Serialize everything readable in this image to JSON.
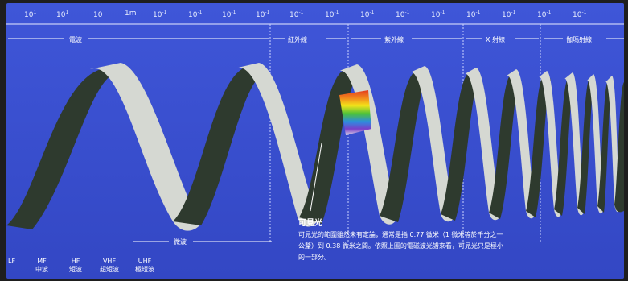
{
  "ticks": [
    {
      "base": "10",
      "exp": "1"
    },
    {
      "base": "10",
      "exp": "1"
    },
    {
      "base": "10",
      "exp": ""
    },
    {
      "base": "1m",
      "exp": ""
    },
    {
      "base": "10",
      "exp": "-1"
    },
    {
      "base": "10",
      "exp": "-1"
    },
    {
      "base": "10",
      "exp": "-1"
    },
    {
      "base": "10",
      "exp": "-1"
    },
    {
      "base": "10",
      "exp": "-1"
    },
    {
      "base": "10",
      "exp": "-1"
    },
    {
      "base": "10",
      "exp": "-1"
    },
    {
      "base": "10",
      "exp": "-1"
    },
    {
      "base": "10",
      "exp": "-1"
    },
    {
      "base": "10",
      "exp": "-1"
    },
    {
      "base": "10",
      "exp": "-1"
    },
    {
      "base": "10",
      "exp": "-1"
    },
    {
      "base": "10",
      "exp": "-1"
    }
  ],
  "bands": {
    "radio": "電波",
    "infrared": "紅外線",
    "ultraviolet": "紫外線",
    "xray": "X 射線",
    "gamma": "伽瑪射線",
    "microwave": "微波"
  },
  "radio_bands": [
    {
      "code": "LF",
      "name": ""
    },
    {
      "code": "MF",
      "name": "中波"
    },
    {
      "code": "HF",
      "name": "短波"
    },
    {
      "code": "VHF",
      "name": "超短波"
    },
    {
      "code": "UHF",
      "name": "極短波"
    }
  ],
  "caption": {
    "title": "可見光",
    "body": "可見光的範圍雖然未有定論，通常是指 0.77 微米（1 微米等於千分之一公釐）到 0.38 微米之間。依照上圖的電磁波光譜來看，可見光只是極小的一部分。"
  },
  "colors": {
    "background": "#3b4fd0",
    "ribbon_front": "#d6d9d4",
    "ribbon_back": "#2f3a30",
    "frame": "#2a2a2a"
  }
}
